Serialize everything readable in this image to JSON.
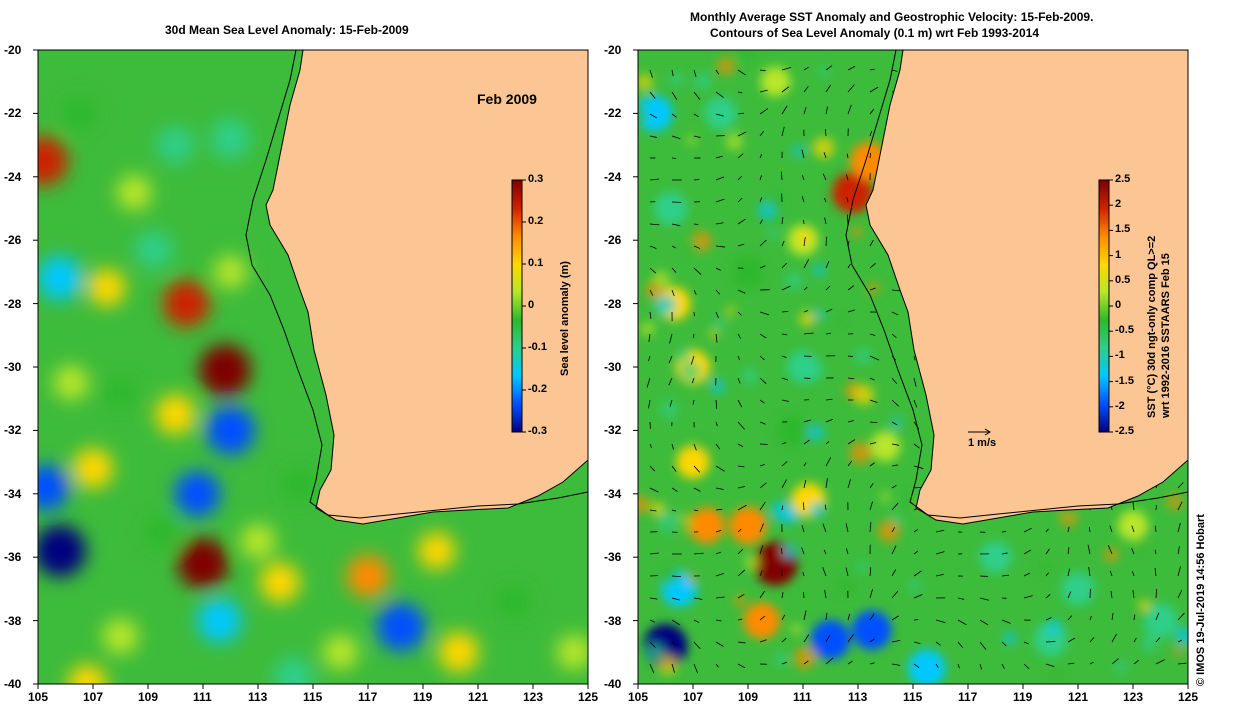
{
  "left_panel": {
    "title": "30d Mean Sea Level Anomaly: 15-Feb-2009",
    "inset_label": "Feb 2009",
    "colorbar": {
      "label": "Sea level anomaly (m)",
      "ticks": [
        "0.3",
        "0.2",
        "0.1",
        "0",
        "-0.1",
        "-0.2",
        "-0.3"
      ],
      "range": [
        -0.3,
        0.3
      ]
    }
  },
  "right_panel": {
    "title_line1": "Monthly Average SST Anomaly  and Geostrophic Velocity: 15-Feb-2009.",
    "title_line2": "Contours of Sea Level Anomaly (0.1 m) wrt Feb 1993-2014",
    "velocity_scale_label": "1 m/s",
    "colorbar": {
      "label_line1": "SST (°C) 30d ngt-only comp QL>=2",
      "label_line2": "wrt 1992-2016 SSTAARS Feb 15",
      "ticks": [
        "2.5",
        "2",
        "1.5",
        "1",
        "0.5",
        "0",
        "-0.5",
        "-1",
        "-1.5",
        "-2",
        "-2.5"
      ],
      "range": [
        -2.5,
        2.5
      ]
    }
  },
  "axes": {
    "x_ticks": [
      "105",
      "107",
      "109",
      "111",
      "113",
      "115",
      "117",
      "119",
      "121",
      "123",
      "125"
    ],
    "y_ticks": [
      "-20",
      "-22",
      "-24",
      "-26",
      "-28",
      "-30",
      "-32",
      "-34",
      "-36",
      "-38",
      "-40"
    ],
    "lon_range": [
      105,
      125
    ],
    "lat_range": [
      -40,
      -20
    ]
  },
  "credit": "© IMOS 19-Jul-2019 14:56 Hobart",
  "colors": {
    "land": "#fbc594",
    "ocean_base": "#3dbb3b",
    "colormap": [
      "#00007f",
      "#0050ff",
      "#00c8ff",
      "#2ecf8a",
      "#2db82d",
      "#b8e62a",
      "#ffd700",
      "#ff8a00",
      "#cc2200",
      "#7f0000"
    ]
  }
}
